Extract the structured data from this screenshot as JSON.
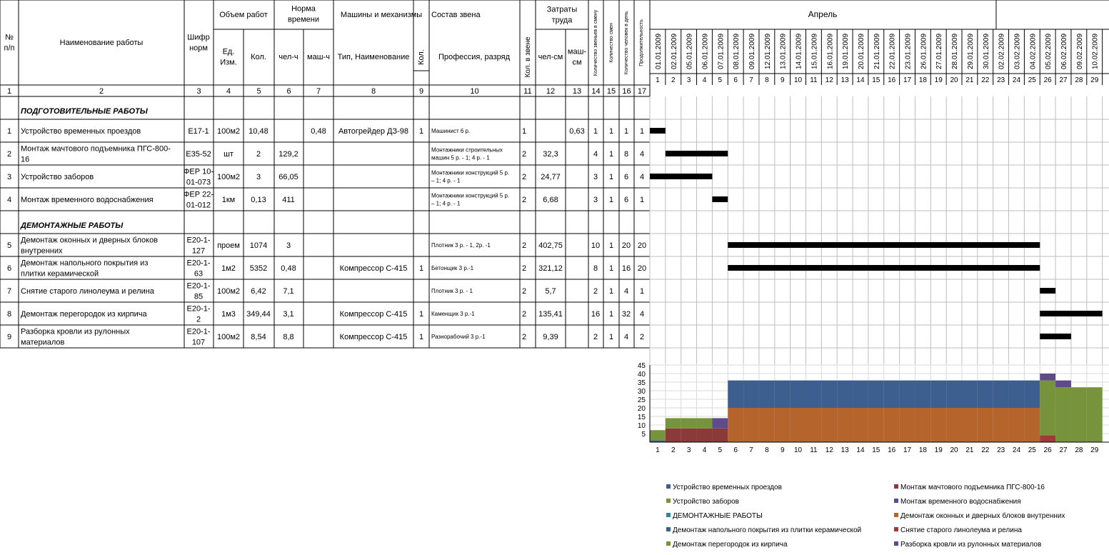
{
  "header": {
    "num": "№ п/п",
    "name": "Наименование работы",
    "code": "Шифр норм",
    "volume": "Объем работ",
    "unit": "Ед. Изм.",
    "qty": "Кол.",
    "norm": "Норма времени",
    "manh": "чел-ч",
    "mashh": "маш-ч",
    "machines": "Машины и механизмы",
    "machine_type": "Тип, Наименование",
    "machine_qty": "Кол.",
    "crew": "Состав звена",
    "profession": "Профессия, разряд",
    "crew_count": "Кол. в звене",
    "labor": "Затраты труда",
    "mandays": "чел-см",
    "machdays": "маш-см",
    "crews_per_shift": "Количество звеньев в смену",
    "shifts": "Количество смен",
    "people_per_day": "Количество человек в день",
    "duration": "Продолжительность",
    "month": "Апрель"
  },
  "col_numbers": [
    "1",
    "2",
    "3",
    "4",
    "5",
    "6",
    "7",
    "8",
    "9",
    "10",
    "11",
    "12",
    "13",
    "14",
    "15",
    "16",
    "17"
  ],
  "dates": [
    "01.01.2009",
    "02.01.2009",
    "05.01.2009",
    "06.01.2009",
    "07.01.2009",
    "08.01.2009",
    "09.01.2009",
    "12.01.2009",
    "13.01.2009",
    "14.01.2009",
    "15.01.2009",
    "16.01.2009",
    "19.01.2009",
    "20.01.2009",
    "21.01.2009",
    "22.01.2009",
    "23.01.2009",
    "26.01.2009",
    "27.01.2009",
    "28.01.2009",
    "29.01.2009",
    "30.01.2009",
    "02.02.2009",
    "03.02.2009",
    "04.02.2009",
    "05.02.2009",
    "06.02.2009",
    "09.02.2009",
    "10.02.2009"
  ],
  "day_numbers": [
    "1",
    "2",
    "3",
    "4",
    "5",
    "6",
    "7",
    "8",
    "9",
    "10",
    "11",
    "12",
    "13",
    "14",
    "15",
    "16",
    "17",
    "18",
    "19",
    "20",
    "21",
    "22",
    "23",
    "24",
    "25",
    "26",
    "27",
    "28",
    "29"
  ],
  "rows": [
    {
      "section": true,
      "name": "ПОДГОТОВИТЕЛЬНЫЕ РАБОТЫ"
    },
    {
      "num": "1",
      "name": [
        "Устройство временных проездов"
      ],
      "code": [
        "Е17-1"
      ],
      "unit": "100м2",
      "qty": "10,48",
      "manh": "",
      "mashh": "0,48",
      "machine": "Автогрейдер ДЗ-98",
      "mqty": "1",
      "prof": [
        "Машинист 6 р."
      ],
      "crew": "1",
      "mandays": "",
      "machdays": "0,63",
      "c14": "1",
      "c15": "1",
      "c16": "1",
      "c17": "1",
      "bar": [
        0,
        1
      ]
    },
    {
      "num": "2",
      "name": [
        "Монтаж мачтового подъемника ПГС-800-",
        "16"
      ],
      "code": [
        "Е35-52"
      ],
      "unit": "шт",
      "qty": "2",
      "manh": "129,2",
      "mashh": "",
      "machine": "",
      "mqty": "",
      "prof": [
        "Монтажники строительных",
        "машин 5 р. - 1; 4 р. - 1"
      ],
      "crew": "2",
      "mandays": "32,3",
      "machdays": "",
      "c14": "4",
      "c15": "1",
      "c16": "8",
      "c17": "4",
      "bar": [
        1,
        5
      ]
    },
    {
      "num": "3",
      "name": [
        "Устройство заборов"
      ],
      "code": [
        "ФЕР 10-",
        "01-073"
      ],
      "unit": "100м2",
      "qty": "3",
      "manh": "66,05",
      "mashh": "",
      "machine": "",
      "mqty": "",
      "prof": [
        "Монтажники конструкций 5 р.",
        "– 1; 4 р. - 1"
      ],
      "crew": "2",
      "mandays": "24,77",
      "machdays": "",
      "c14": "3",
      "c15": "1",
      "c16": "6",
      "c17": "4",
      "bar": [
        0,
        4
      ]
    },
    {
      "num": "4",
      "name": [
        "Монтаж временного водоснабжения"
      ],
      "code": [
        "ФЕР 22-",
        "01-012"
      ],
      "unit": "1км",
      "qty": "0,13",
      "manh": "411",
      "mashh": "",
      "machine": "",
      "mqty": "",
      "prof": [
        "Монтажники конструкций 5 р.",
        "– 1; 4 р. - 1"
      ],
      "crew": "2",
      "mandays": "6,68",
      "machdays": "",
      "c14": "3",
      "c15": "1",
      "c16": "6",
      "c17": "1",
      "bar": [
        4,
        5
      ]
    },
    {
      "section": true,
      "name": "ДЕМОНТАЖНЫЕ РАБОТЫ"
    },
    {
      "num": "5",
      "name": [
        "Демонтаж оконных и дверных блоков",
        "внутренних"
      ],
      "code": [
        "Е20-1-",
        "127"
      ],
      "unit": "проем",
      "qty": "1074",
      "manh": "3",
      "mashh": "",
      "machine": "",
      "mqty": "",
      "prof": [
        "Плотник 3 р. - 1, 2р. -1"
      ],
      "crew": "2",
      "mandays": "402,75",
      "machdays": "",
      "c14": "10",
      "c15": "1",
      "c16": "20",
      "c17": "20",
      "bar": [
        5,
        25
      ]
    },
    {
      "num": "6",
      "name": [
        "Демонтаж напольного покрытия из",
        "плитки керамической"
      ],
      "code": [
        "Е20-1-",
        "63"
      ],
      "unit": "1м2",
      "qty": "5352",
      "manh": "0,48",
      "mashh": "",
      "machine": "Компрессор С-415",
      "mqty": "1",
      "prof": [
        "Бетонщик 3 р.-1"
      ],
      "crew": "2",
      "mandays": "321,12",
      "machdays": "",
      "c14": "8",
      "c15": "1",
      "c16": "16",
      "c17": "20",
      "bar": [
        5,
        25
      ]
    },
    {
      "num": "7",
      "name": [
        "Снятие старого линолеума и релина"
      ],
      "code": [
        "Е20-1-",
        "85"
      ],
      "unit": "100м2",
      "qty": "6,42",
      "manh": "7,1",
      "mashh": "",
      "machine": "",
      "mqty": "",
      "prof": [
        "Плотник 3 р. - 1"
      ],
      "crew": "2",
      "mandays": "5,7",
      "machdays": "",
      "c14": "2",
      "c15": "1",
      "c16": "4",
      "c17": "1",
      "bar": [
        25,
        26
      ]
    },
    {
      "num": "8",
      "name": [
        "Демонтаж перегородок из кирпича"
      ],
      "code": [
        "Е20-1-",
        "2"
      ],
      "unit": "1м3",
      "qty": "349,44",
      "manh": "3,1",
      "mashh": "",
      "machine": "Компрессор С-415",
      "mqty": "1",
      "prof": [
        "Каменщик 3 р.-1"
      ],
      "crew": "2",
      "mandays": "135,41",
      "machdays": "",
      "c14": "16",
      "c15": "1",
      "c16": "32",
      "c17": "4",
      "bar": [
        25,
        29
      ]
    },
    {
      "num": "9",
      "name": [
        "Разборка кровли из рулонных",
        "материалов"
      ],
      "code": [
        "Е20-1-",
        "107"
      ],
      "unit": "100м2",
      "qty": "8,54",
      "manh": "8,8",
      "mashh": "",
      "machine": "Компрессор С-415",
      "mqty": "1",
      "prof": [
        "Разнорабочий 3 р.-1"
      ],
      "crew": "2",
      "mandays": "9,39",
      "machdays": "",
      "c14": "2",
      "c15": "1",
      "c16": "4",
      "c17": "2",
      "bar": [
        25,
        27
      ]
    }
  ],
  "chart_data": {
    "type": "area",
    "stacked": true,
    "x": [
      1,
      2,
      3,
      4,
      5,
      6,
      7,
      8,
      9,
      10,
      11,
      12,
      13,
      14,
      15,
      16,
      17,
      18,
      19,
      20,
      21,
      22,
      23,
      24,
      25,
      26,
      27,
      28,
      29
    ],
    "ylim": [
      0,
      45
    ],
    "yticks": [
      5,
      10,
      15,
      20,
      25,
      30,
      35,
      40,
      45
    ],
    "legend_position": "bottom",
    "series": [
      {
        "name": "Устройство временных проездов",
        "color": "#3d5f8f",
        "values": [
          1,
          0,
          0,
          0,
          0,
          0,
          0,
          0,
          0,
          0,
          0,
          0,
          0,
          0,
          0,
          0,
          0,
          0,
          0,
          0,
          0,
          0,
          0,
          0,
          0,
          0,
          0,
          0,
          0
        ]
      },
      {
        "name": "Монтаж мачтового подъемника ПГС-800-16",
        "color": "#8b3a3a",
        "values": [
          0,
          8,
          8,
          8,
          8,
          0,
          0,
          0,
          0,
          0,
          0,
          0,
          0,
          0,
          0,
          0,
          0,
          0,
          0,
          0,
          0,
          0,
          0,
          0,
          0,
          0,
          0,
          0,
          0
        ]
      },
      {
        "name": "Устройство заборов",
        "color": "#77933c",
        "values": [
          6,
          6,
          6,
          6,
          0,
          0,
          0,
          0,
          0,
          0,
          0,
          0,
          0,
          0,
          0,
          0,
          0,
          0,
          0,
          0,
          0,
          0,
          0,
          0,
          0,
          0,
          0,
          0,
          0
        ]
      },
      {
        "name": "Монтаж временного водоснабжения",
        "color": "#5f4b8b",
        "values": [
          0,
          0,
          0,
          0,
          6,
          0,
          0,
          0,
          0,
          0,
          0,
          0,
          0,
          0,
          0,
          0,
          0,
          0,
          0,
          0,
          0,
          0,
          0,
          0,
          0,
          0,
          0,
          0,
          0
        ]
      },
      {
        "name": "ДЕМОНТАЖНЫЕ РАБОТЫ",
        "color": "#31859c",
        "values": [
          0,
          0,
          0,
          0,
          0,
          0,
          0,
          0,
          0,
          0,
          0,
          0,
          0,
          0,
          0,
          0,
          0,
          0,
          0,
          0,
          0,
          0,
          0,
          0,
          0,
          0,
          0,
          0,
          0
        ]
      },
      {
        "name": "Демонтаж оконных и дверных блоков внутренних",
        "color": "#b5652c",
        "values": [
          0,
          0,
          0,
          0,
          0,
          20,
          20,
          20,
          20,
          20,
          20,
          20,
          20,
          20,
          20,
          20,
          20,
          20,
          20,
          20,
          20,
          20,
          20,
          20,
          20,
          0,
          0,
          0,
          0
        ]
      },
      {
        "name": "Демонтаж напольного покрытия из плитки керамической",
        "color": "#3d5f8f",
        "values": [
          0,
          0,
          0,
          0,
          0,
          16,
          16,
          16,
          16,
          16,
          16,
          16,
          16,
          16,
          16,
          16,
          16,
          16,
          16,
          16,
          16,
          16,
          16,
          16,
          16,
          0,
          0,
          0,
          0
        ]
      },
      {
        "name": "Снятие старого линолеума и релина",
        "color": "#a03a3a",
        "values": [
          0,
          0,
          0,
          0,
          0,
          0,
          0,
          0,
          0,
          0,
          0,
          0,
          0,
          0,
          0,
          0,
          0,
          0,
          0,
          0,
          0,
          0,
          0,
          0,
          0,
          4,
          0,
          0,
          0
        ]
      },
      {
        "name": "Демонтаж перегородок из кирпича",
        "color": "#77933c",
        "values": [
          0,
          0,
          0,
          0,
          0,
          0,
          0,
          0,
          0,
          0,
          0,
          0,
          0,
          0,
          0,
          0,
          0,
          0,
          0,
          0,
          0,
          0,
          0,
          0,
          0,
          32,
          32,
          32,
          32
        ]
      },
      {
        "name": "Разборка кровли из рулонных материалов",
        "color": "#5f4b8b",
        "values": [
          0,
          0,
          0,
          0,
          0,
          0,
          0,
          0,
          0,
          0,
          0,
          0,
          0,
          0,
          0,
          0,
          0,
          0,
          0,
          0,
          0,
          0,
          0,
          0,
          0,
          4,
          4,
          0,
          0
        ]
      }
    ]
  }
}
